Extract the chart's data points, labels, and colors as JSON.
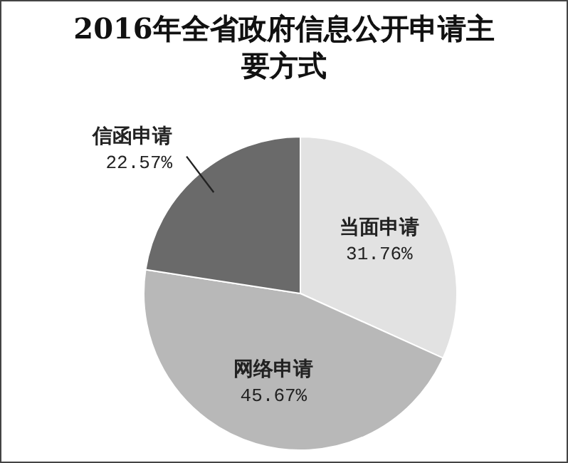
{
  "chart_data": {
    "type": "pie",
    "title": "2016年全省政府信息公开申请主要方式",
    "categories": [
      "当面申请",
      "网络申请",
      "信函申请"
    ],
    "values": [
      31.76,
      45.67,
      22.57
    ],
    "value_labels": [
      "31.76%",
      "45.67%",
      "22.57%"
    ],
    "colors": [
      "#e2e2e2",
      "#b8b8b8",
      "#6a6a6a"
    ]
  }
}
